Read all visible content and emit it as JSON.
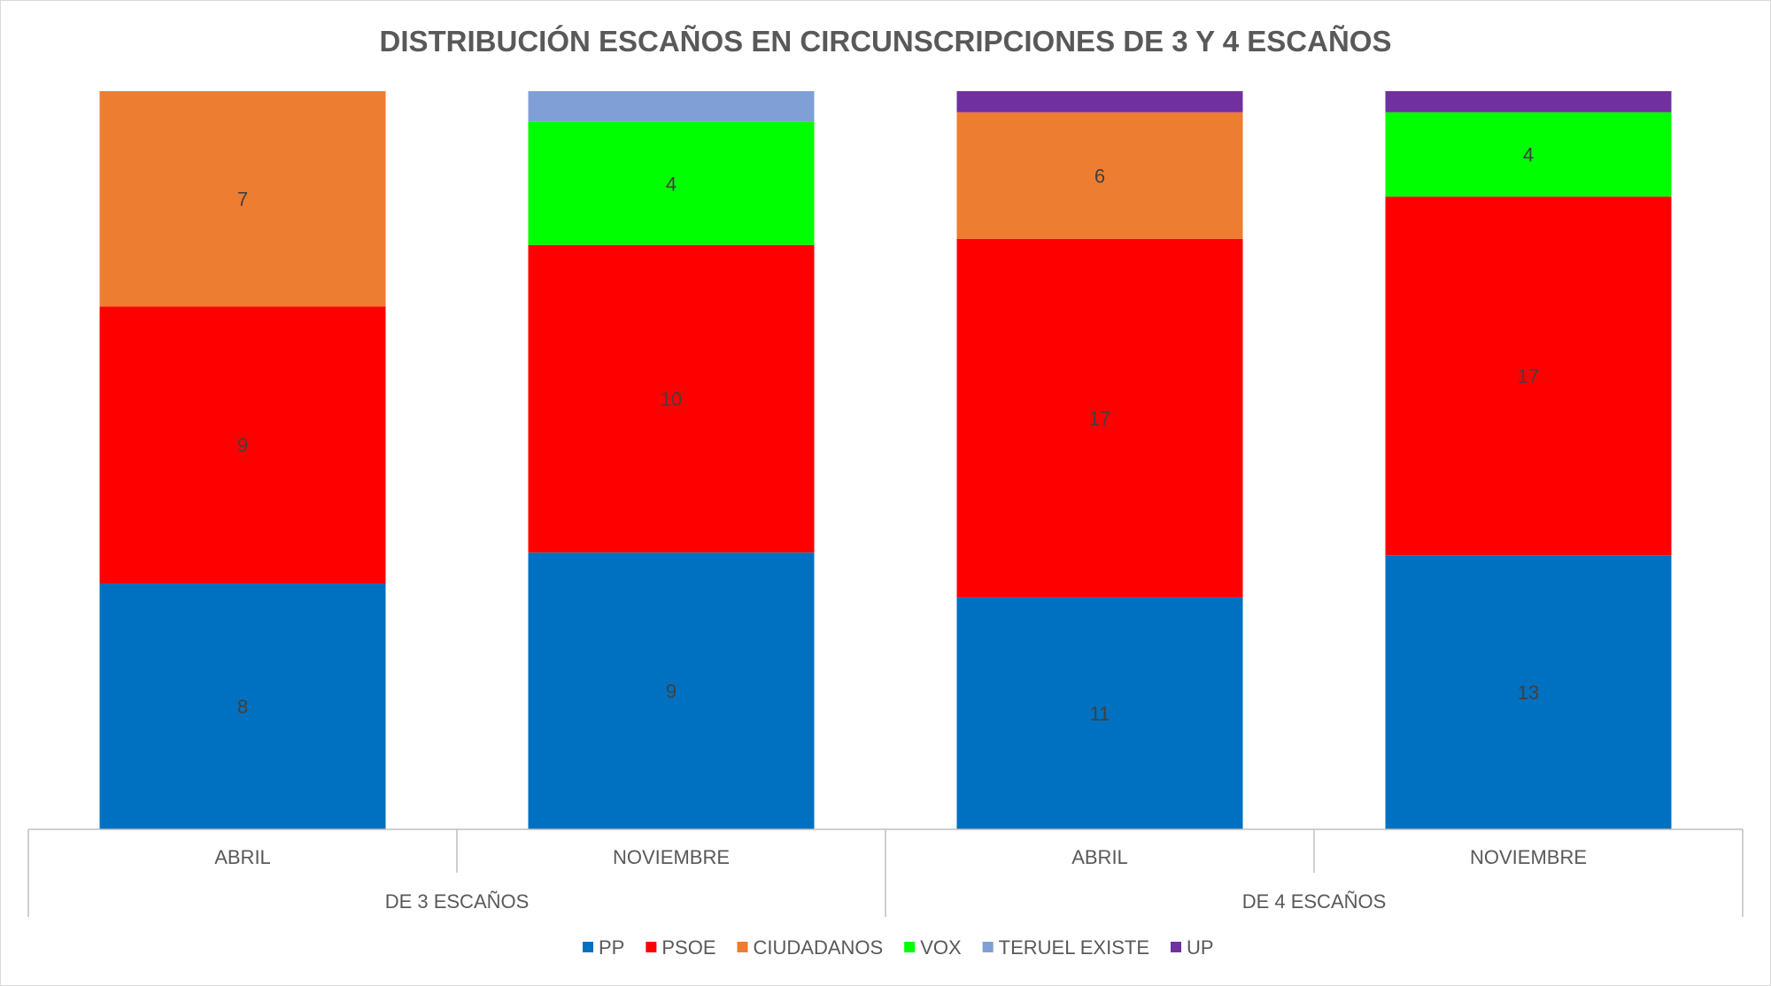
{
  "chart_data": {
    "type": "bar",
    "stacked": "percent",
    "title": "DISTRIBUCIÓN ESCAÑOS EN CIRCUNSCRIPCIONES DE 3 Y 4 ESCAÑOS",
    "groups": [
      {
        "label": "DE 3 ESCAÑOS",
        "categories": [
          "ABRIL",
          "NOVIEMBRE"
        ]
      },
      {
        "label": "DE 4 ESCAÑOS",
        "categories": [
          "ABRIL",
          "NOVIEMBRE"
        ]
      }
    ],
    "categories": [
      "ABRIL",
      "NOVIEMBRE",
      "ABRIL",
      "NOVIEMBRE"
    ],
    "series": [
      {
        "name": "PP",
        "color": "#0070C0",
        "values": [
          8,
          9,
          11,
          13
        ]
      },
      {
        "name": "PSOE",
        "color": "#FF0000",
        "values": [
          9,
          10,
          17,
          17
        ]
      },
      {
        "name": "CIUDADANOS",
        "color": "#ED7D31",
        "values": [
          7,
          0,
          6,
          0
        ]
      },
      {
        "name": "VOX",
        "color": "#00FF00",
        "values": [
          0,
          4,
          0,
          4
        ]
      },
      {
        "name": "TERUEL EXISTE",
        "color": "#7F9FD6",
        "values": [
          0,
          1,
          0,
          0
        ]
      },
      {
        "name": "UP",
        "color": "#7030A0",
        "values": [
          0,
          0,
          1,
          1
        ]
      }
    ],
    "data_labels_min": 2,
    "legend_position": "bottom",
    "grid": false
  }
}
